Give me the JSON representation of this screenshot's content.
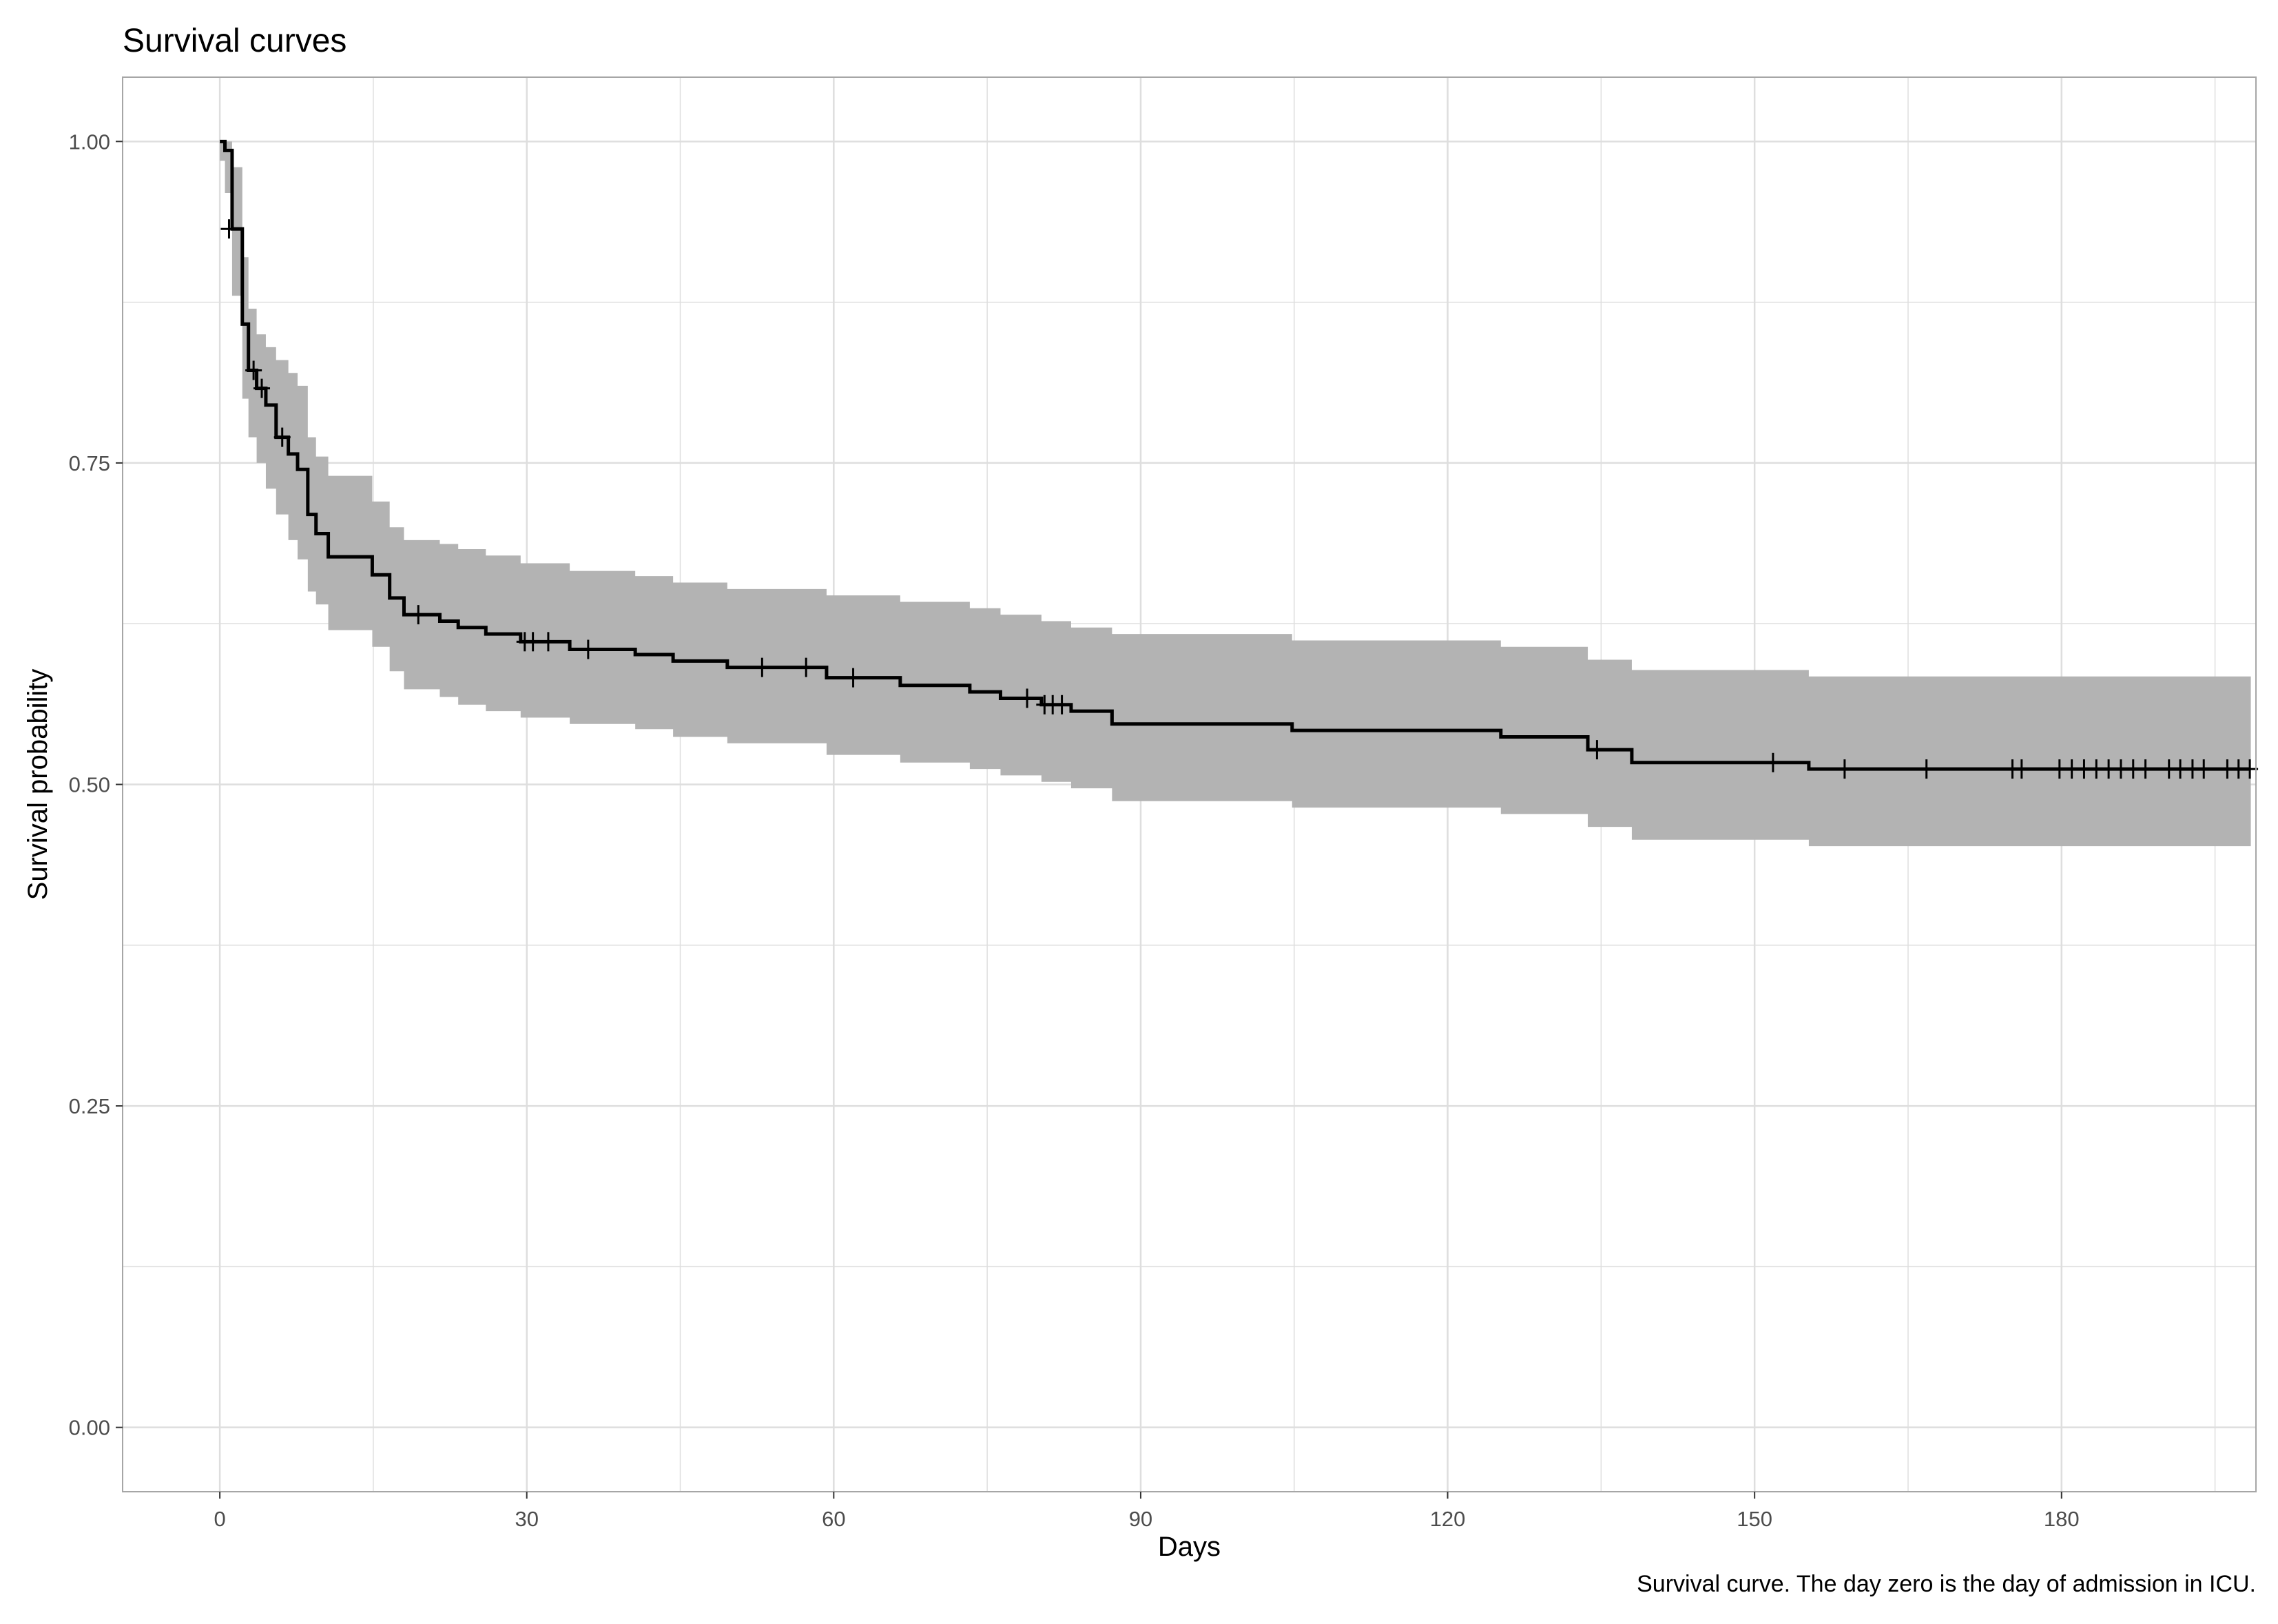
{
  "title": "Survival curves",
  "caption": "Survival curve. The day zero is the day of admission  in ICU.",
  "chart_data": {
    "type": "line",
    "xlabel": "Days",
    "ylabel": "Survival probability",
    "xlim": [
      -9.5,
      199
    ],
    "ylim": [
      -0.05,
      1.05
    ],
    "xticks": [
      "0",
      "30",
      "60",
      "90",
      "120",
      "150",
      "180"
    ],
    "yticks": [
      "0.00",
      "0.25",
      "0.50",
      "0.75",
      "1.00"
    ],
    "grid": true,
    "style": {
      "line": "#000000",
      "band": "#b3b3b3",
      "grid": "#dedede",
      "border": "#a6a6a6"
    },
    "series": [
      {
        "step": "post",
        "x": [
          0,
          0.5,
          1.2,
          2.2,
          2.8,
          3.6,
          4.5,
          5.5,
          6.7,
          7.6,
          8.6,
          9.4,
          10.6,
          12.2,
          14.9,
          16.6,
          18.0,
          21.5,
          23.3,
          26.0,
          29.4,
          34.2,
          40.6,
          44.3,
          49.6,
          59.3,
          66.5,
          73.3,
          76.3,
          80.3,
          83.2,
          87.2,
          104.8,
          125.2,
          133.7,
          138.0,
          155.3,
          198.5
        ],
        "y": [
          1.0,
          0.993,
          0.932,
          0.858,
          0.822,
          0.808,
          0.795,
          0.77,
          0.757,
          0.745,
          0.71,
          0.695,
          0.677,
          0.677,
          0.663,
          0.645,
          0.632,
          0.627,
          0.622,
          0.617,
          0.611,
          0.605,
          0.601,
          0.596,
          0.591,
          0.583,
          0.577,
          0.572,
          0.567,
          0.562,
          0.557,
          0.547,
          0.542,
          0.537,
          0.527,
          0.517,
          0.512,
          0.512
        ],
        "lower": [
          0.985,
          0.96,
          0.88,
          0.8,
          0.77,
          0.75,
          0.73,
          0.71,
          0.69,
          0.675,
          0.65,
          0.64,
          0.62,
          0.62,
          0.607,
          0.588,
          0.574,
          0.568,
          0.562,
          0.557,
          0.552,
          0.547,
          0.543,
          0.537,
          0.532,
          0.523,
          0.517,
          0.512,
          0.507,
          0.502,
          0.497,
          0.487,
          0.482,
          0.477,
          0.467,
          0.457,
          0.452,
          0.452
        ],
        "upper": [
          1.0,
          1.0,
          0.98,
          0.91,
          0.87,
          0.85,
          0.84,
          0.83,
          0.82,
          0.81,
          0.77,
          0.755,
          0.74,
          0.74,
          0.72,
          0.7,
          0.69,
          0.687,
          0.683,
          0.678,
          0.672,
          0.666,
          0.662,
          0.657,
          0.652,
          0.647,
          0.642,
          0.637,
          0.632,
          0.627,
          0.622,
          0.617,
          0.612,
          0.607,
          0.597,
          0.589,
          0.584,
          0.584
        ],
        "censored": [
          [
            0.9,
            0.932
          ],
          [
            3.3,
            0.822
          ],
          [
            4.1,
            0.808
          ],
          [
            6.1,
            0.77
          ],
          [
            19.4,
            0.632
          ],
          [
            29.8,
            0.611
          ],
          [
            30.6,
            0.611
          ],
          [
            32.1,
            0.611
          ],
          [
            36.0,
            0.605
          ],
          [
            53.0,
            0.591
          ],
          [
            57.3,
            0.591
          ],
          [
            61.9,
            0.583
          ],
          [
            78.9,
            0.567
          ],
          [
            80.6,
            0.562
          ],
          [
            81.4,
            0.562
          ],
          [
            82.3,
            0.562
          ],
          [
            134.6,
            0.527
          ],
          [
            151.8,
            0.517
          ],
          [
            158.8,
            0.512
          ],
          [
            166.8,
            0.512
          ],
          [
            175.2,
            0.512
          ],
          [
            176.1,
            0.512
          ],
          [
            179.8,
            0.512
          ],
          [
            181.0,
            0.512
          ],
          [
            182.2,
            0.512
          ],
          [
            183.4,
            0.512
          ],
          [
            184.6,
            0.512
          ],
          [
            185.8,
            0.512
          ],
          [
            187.0,
            0.512
          ],
          [
            188.2,
            0.512
          ],
          [
            190.5,
            0.512
          ],
          [
            191.6,
            0.512
          ],
          [
            192.8,
            0.512
          ],
          [
            193.9,
            0.512
          ],
          [
            196.2,
            0.512
          ],
          [
            197.3,
            0.512
          ],
          [
            198.4,
            0.512
          ]
        ]
      }
    ]
  }
}
